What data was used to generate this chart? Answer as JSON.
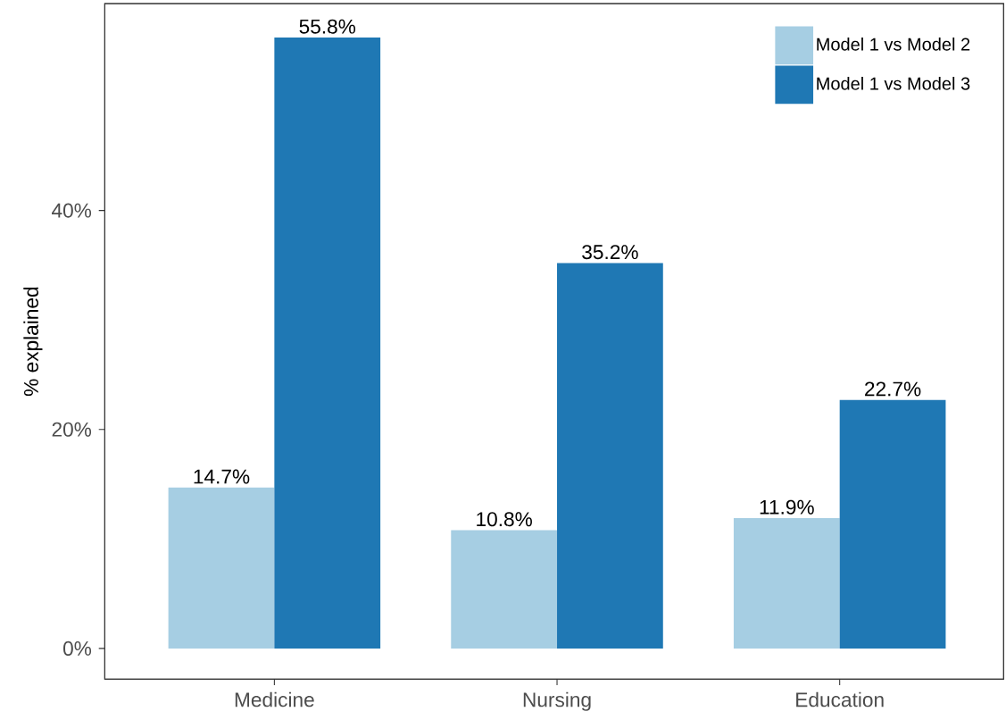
{
  "chart_data": {
    "type": "bar",
    "ylabel": "% explained",
    "categories": [
      "Medicine",
      "Nursing",
      "Education"
    ],
    "series": [
      {
        "name": "Model 1 vs Model 2",
        "color": "#a6cee3",
        "values": [
          14.7,
          10.8,
          11.9
        ],
        "value_labels": [
          "14.7%",
          "10.8%",
          "11.9%"
        ]
      },
      {
        "name": "Model 1 vs Model 3",
        "color": "#1f78b4",
        "values": [
          55.8,
          35.2,
          22.7
        ],
        "value_labels": [
          "55.8%",
          "35.2%",
          "22.7%"
        ]
      }
    ],
    "ylim": [
      -2.8,
      58.9
    ],
    "yticks": [
      {
        "value": 0,
        "label": "0%"
      },
      {
        "value": 20,
        "label": "20%"
      },
      {
        "value": 40,
        "label": "40%"
      }
    ],
    "legend": "top right"
  }
}
